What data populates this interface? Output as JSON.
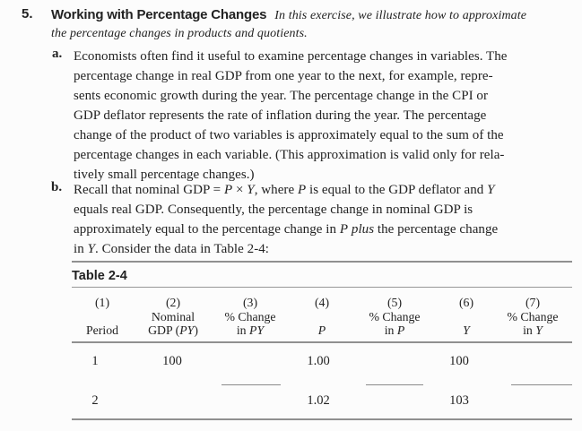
{
  "page": {
    "background": "#fcfcfc",
    "text_color": "#222222",
    "rule_color": "#909090"
  },
  "heading": {
    "number": "5.",
    "title": "Working with Percentage Changes",
    "intro_lines": [
      "In this exercise, we illustrate how to approximate",
      "the percentage changes in products and quotients."
    ]
  },
  "item_a": {
    "label": "a.",
    "lines": [
      "Economists often find it useful to examine percentage changes in variables. The",
      "percentage change in real GDP from one year to the next, for example, repre-",
      "sents economic growth during the year. The percentage change in the CPI or",
      "GDP deflator represents the rate of inflation during the year. The percentage",
      "change of the product of two variables is approximately equal to the sum of the",
      "percentage changes in each variable. (This approximation is valid only for rela-",
      "tively small percentage changes.)"
    ]
  },
  "item_b": {
    "label": "b.",
    "lines": [
      [
        {
          "text": "Recall that nominal GDP = "
        },
        {
          "text": "P",
          "italic": true
        },
        {
          "text": " × "
        },
        {
          "text": "Y",
          "italic": true
        },
        {
          "text": ", where "
        },
        {
          "text": "P",
          "italic": true
        },
        {
          "text": " is equal to the GDP deflator and "
        },
        {
          "text": "Y",
          "italic": true
        }
      ],
      [
        {
          "text": "equals real GDP. Consequently, the percentage change in nominal GDP is"
        }
      ],
      [
        {
          "text": "approximately equal to the percentage change in "
        },
        {
          "text": "P",
          "italic": true
        },
        {
          "text": " "
        },
        {
          "text": "plus",
          "italic": true
        },
        {
          "text": " the percentage change"
        }
      ],
      [
        {
          "text": "in "
        },
        {
          "text": "Y",
          "italic": true
        },
        {
          "text": ". Consider the data in Table 2-4:"
        }
      ]
    ]
  },
  "table": {
    "title": "Table 2-4",
    "columns": [
      {
        "num": "(1)",
        "line2": "",
        "line3": [
          {
            "text": "Period"
          }
        ]
      },
      {
        "num": "(2)",
        "line2": "Nominal",
        "line3": [
          {
            "text": "GDP ("
          },
          {
            "text": "PY",
            "italic": true
          },
          {
            "text": ")"
          }
        ]
      },
      {
        "num": "(3)",
        "line2": "% Change",
        "line3": [
          {
            "text": "in "
          },
          {
            "text": "PY",
            "italic": true
          }
        ]
      },
      {
        "num": "(4)",
        "line2": "",
        "line3": [
          {
            "text": "P",
            "italic": true
          }
        ]
      },
      {
        "num": "(5)",
        "line2": "% Change",
        "line3": [
          {
            "text": "in "
          },
          {
            "text": "P",
            "italic": true
          }
        ]
      },
      {
        "num": "(6)",
        "line2": "",
        "line3": [
          {
            "text": "Y",
            "italic": true
          }
        ]
      },
      {
        "num": "(7)",
        "line2": "% Change",
        "line3": [
          {
            "text": "in "
          },
          {
            "text": "Y",
            "italic": true
          }
        ]
      }
    ],
    "rows": [
      {
        "period": "1",
        "nominal_gdp": "100",
        "pct_change_py": "",
        "p": "1.00",
        "pct_change_p": "",
        "y": "100",
        "pct_change_y": ""
      },
      {
        "period": "2",
        "nominal_gdp": "",
        "pct_change_py": "",
        "p": "1.02",
        "pct_change_p": "",
        "y": "103",
        "pct_change_y": ""
      }
    ],
    "fill_in_blank_columns": [
      "% Change in PY",
      "% Change in P",
      "% Change in Y"
    ]
  }
}
